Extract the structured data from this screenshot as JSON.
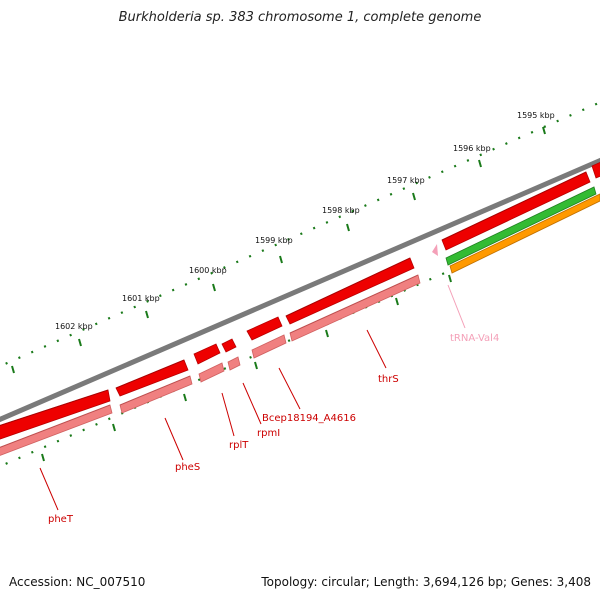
{
  "title": "Burkholderia sp. 383 chromosome 1, complete genome",
  "footer": {
    "accession": "Accession: NC_007510",
    "summary": "Topology: circular; Length: 3,694,126 bp; Genes: 3,408"
  },
  "scale_labels": [
    "1595 kbp",
    "1596 kbp",
    "1597 kbp",
    "1598 kbp",
    "1599 kbp",
    "1600 kbp",
    "1601 kbp",
    "1602 kbp"
  ],
  "gene_labels": [
    "pheT",
    "pheS",
    "rplT",
    "rpmI",
    "Bcep18194_A4616",
    "thrS",
    "tRNA-Val4"
  ],
  "colors": {
    "backbone": "#7a7a7a",
    "cds": "#ee0000",
    "gene": "#f08080",
    "rrna": "#33bb33",
    "trna": "#ff9900",
    "trna_label": "#f4a0b8",
    "ticks": "#1a7a1a",
    "label": "#cc0000"
  }
}
